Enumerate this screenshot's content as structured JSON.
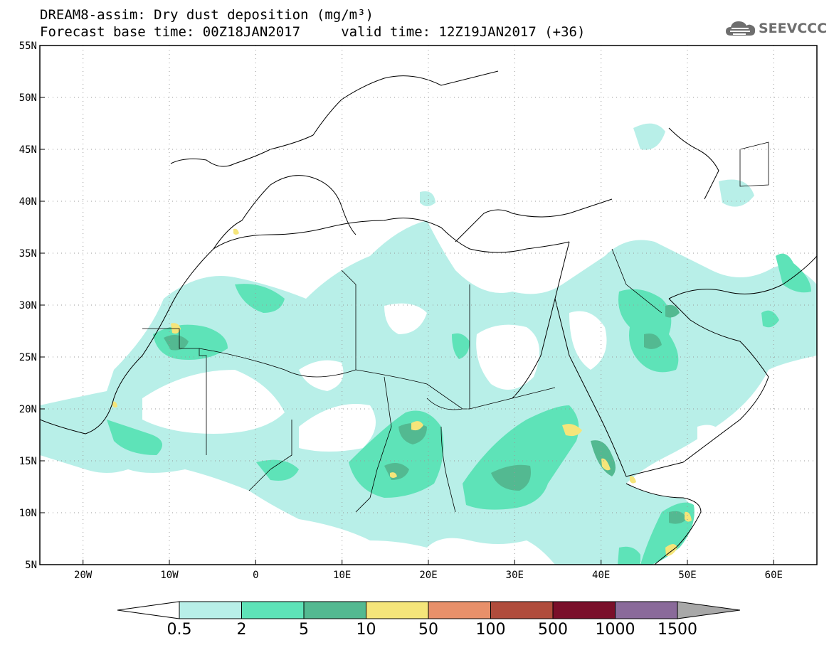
{
  "header": {
    "line1": "DREAM8-assim: Dry dust deposition (mg/m³)",
    "line2": "Forecast base time: 00Z18JAN2017     valid time: 12Z19JAN2017 (+36)"
  },
  "logo": {
    "text": "SEEVCCC",
    "icon": "cloud-icon"
  },
  "map": {
    "lon_range": [
      -25,
      65
    ],
    "lat_range": [
      5,
      55
    ],
    "lat_ticks": [
      "55N",
      "50N",
      "45N",
      "40N",
      "35N",
      "30N",
      "25N",
      "20N",
      "15N",
      "10N",
      "5N"
    ],
    "lon_ticks": [
      "20W",
      "10W",
      "0",
      "10E",
      "20E",
      "30E",
      "40E",
      "50E",
      "60E"
    ],
    "grid": "dotted"
  },
  "colorbar": {
    "levels": [
      "0.5",
      "2",
      "5",
      "10",
      "50",
      "100",
      "500",
      "1000",
      "1500"
    ],
    "colors": [
      "#b8efe8",
      "#5ee3b8",
      "#53b991",
      "#f5e57a",
      "#e8906a",
      "#b04c3c",
      "#7a0f2a",
      "#8a6a9a",
      "#a8a8a8"
    ],
    "under_color": "#ffffff"
  }
}
